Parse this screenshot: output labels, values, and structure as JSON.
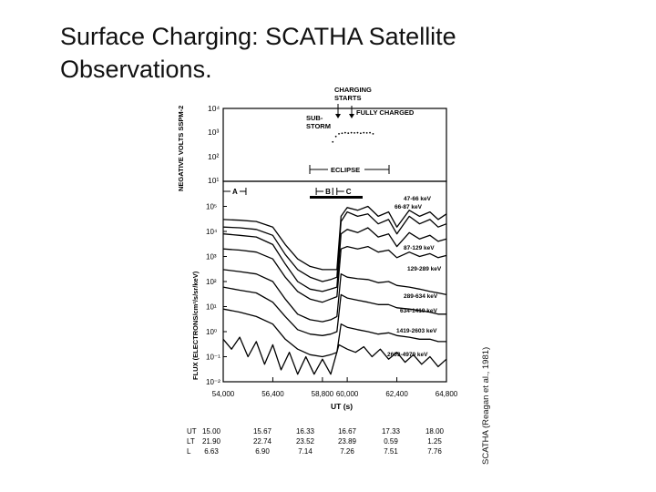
{
  "title": "Surface Charging: SCATHA Satellite Observations.",
  "credit": "SCATHA (Reagan et al., 1981)",
  "chart_data": [
    {
      "type": "line",
      "ylabel": "NEGATIVE VOLTS SSPM-2",
      "y_scale": "log",
      "ylim": [
        10,
        10000
      ],
      "xlim": [
        54000,
        64800
      ],
      "ytick_labels": [
        "10⁴",
        "10³",
        "10²",
        "10¹"
      ],
      "annotations": {
        "charging_starts": "CHARGING STARTS",
        "fully_charged": "FULLY CHARGED",
        "substorm": "SUB-STORM",
        "eclipse": "ECLIPSE"
      },
      "eclipse_range": [
        58000,
        62700
      ],
      "series": [
        {
          "x": [
            59300,
            59450,
            59600,
            59750,
            59900,
            60050,
            60200,
            60350,
            60500,
            60650,
            60800,
            60950,
            61100,
            61250
          ],
          "y": [
            420,
            700,
            900,
            950,
            1000,
            960,
            1000,
            980,
            1000,
            950,
            1000,
            980,
            1000,
            900
          ]
        }
      ]
    },
    {
      "type": "line",
      "ylabel": "FLUX (ELECTRONS/cm²/s/sr/keV)",
      "xlabel": "UT (s)",
      "y_scale": "log",
      "ylim": [
        0.01,
        1000000
      ],
      "xlim": [
        54000,
        64800
      ],
      "x_ticks": [
        54000,
        56400,
        58800,
        60000,
        62400,
        64800
      ],
      "x_tick_labels": [
        "54,000",
        "56,400",
        "58,800",
        "60,000",
        "62,400",
        "64,800"
      ],
      "ytick_labels": [
        "10⁵",
        "10⁴",
        "10³",
        "10²",
        "10¹",
        "10⁰",
        "10⁻¹",
        "10⁻²"
      ],
      "periods": [
        {
          "label": "A",
          "start": 54000,
          "end": 55100
        },
        {
          "label": "B",
          "start": 58500,
          "end": 59300
        },
        {
          "label": "C",
          "start": 59500,
          "end": 64800
        }
      ],
      "series": [
        {
          "name": "47-66 keV",
          "x": [
            54000,
            54800,
            55600,
            56400,
            57000,
            57600,
            58200,
            58800,
            59200,
            59500,
            59700,
            60000,
            60500,
            61000,
            61500,
            62000,
            62400,
            63000,
            63500,
            64000,
            64400,
            64800
          ],
          "y": [
            30000,
            28000,
            25000,
            15000,
            3000,
            800,
            400,
            300,
            300,
            300,
            40000,
            90000,
            70000,
            100000,
            40000,
            60000,
            15000,
            70000,
            40000,
            60000,
            30000,
            50000
          ]
        },
        {
          "name": "66-87 keV",
          "x": [
            54000,
            54800,
            55600,
            56400,
            57000,
            57600,
            58200,
            58800,
            59200,
            59500,
            59700,
            60000,
            60500,
            61000,
            61500,
            62000,
            62400,
            63000,
            63500,
            64000,
            64400,
            64800
          ],
          "y": [
            15000,
            14000,
            12000,
            7000,
            1200,
            300,
            150,
            100,
            120,
            150,
            25000,
            60000,
            40000,
            50000,
            20000,
            30000,
            8000,
            40000,
            20000,
            30000,
            15000,
            20000
          ]
        },
        {
          "name": "87-129 keV",
          "x": [
            54000,
            54800,
            55600,
            56400,
            57000,
            57600,
            58200,
            58800,
            59200,
            59500,
            59700,
            60000,
            60500,
            61000,
            61500,
            62000,
            62400,
            63000,
            63500,
            64000,
            64400,
            64800
          ],
          "y": [
            8000,
            7000,
            6000,
            3000,
            500,
            100,
            50,
            40,
            50,
            60,
            8000,
            12000,
            9000,
            14000,
            6000,
            8000,
            2500,
            9000,
            5000,
            7000,
            4000,
            5000
          ]
        },
        {
          "name": "129-289 keV",
          "x": [
            54000,
            54800,
            55600,
            56400,
            57000,
            57600,
            58200,
            58800,
            59200,
            59500,
            59700,
            60000,
            60500,
            61000,
            61500,
            62000,
            62400,
            63000,
            63500,
            64000,
            64400,
            64800
          ],
          "y": [
            2000,
            1800,
            1500,
            800,
            150,
            40,
            20,
            15,
            20,
            25,
            2000,
            2500,
            2000,
            2500,
            1500,
            1800,
            900,
            1500,
            1000,
            1300,
            900,
            1100
          ]
        },
        {
          "name": "289-634 keV",
          "x": [
            54000,
            54800,
            55600,
            56400,
            57000,
            57600,
            58200,
            58800,
            59200,
            59500,
            59700,
            60000,
            60500,
            61000,
            61500,
            62000,
            62400,
            63000,
            63500,
            64000,
            64400,
            64800
          ],
          "y": [
            300,
            250,
            200,
            100,
            20,
            5,
            3,
            2.5,
            3,
            4,
            200,
            150,
            130,
            120,
            90,
            100,
            70,
            60,
            50,
            40,
            35,
            30
          ]
        },
        {
          "name": "634-1419 keV",
          "x": [
            54000,
            54800,
            55600,
            56400,
            57000,
            57600,
            58200,
            58800,
            59200,
            59500,
            59700,
            60000,
            60500,
            61000,
            61500,
            62000,
            62400,
            63000,
            63500,
            64000,
            64400,
            64800
          ],
          "y": [
            60,
            45,
            35,
            15,
            4,
            1.2,
            0.8,
            0.7,
            0.8,
            1,
            30,
            22,
            18,
            15,
            12,
            12,
            9,
            8,
            7,
            6,
            5,
            5
          ]
        },
        {
          "name": "1419-2603 keV",
          "x": [
            54000,
            54800,
            55600,
            56400,
            57000,
            57600,
            58200,
            58800,
            59200,
            59500,
            59700,
            60000,
            60500,
            61000,
            61500,
            62000,
            62400,
            63000,
            63500,
            64000,
            64400,
            64800
          ],
          "y": [
            8,
            6,
            4,
            2,
            0.5,
            0.2,
            0.12,
            0.1,
            0.12,
            0.15,
            2,
            1.5,
            1.2,
            1,
            0.8,
            0.9,
            0.7,
            0.6,
            0.5,
            0.5,
            0.4,
            0.4
          ]
        },
        {
          "name": "2603-4970 keV",
          "x": [
            54000,
            54400,
            54800,
            55200,
            55600,
            56000,
            56400,
            56800,
            57200,
            57600,
            58000,
            58400,
            58800,
            59200,
            59600,
            60000,
            60400,
            60800,
            61200,
            61600,
            62000,
            62400,
            62800,
            63200,
            63600,
            64000,
            64400,
            64800
          ],
          "y": [
            0.5,
            0.2,
            0.6,
            0.1,
            0.4,
            0.05,
            0.3,
            0.03,
            0.15,
            0.02,
            0.1,
            0.02,
            0.08,
            0.02,
            0.3,
            0.2,
            0.15,
            0.25,
            0.1,
            0.2,
            0.08,
            0.15,
            0.06,
            0.12,
            0.05,
            0.1,
            0.04,
            0.08
          ]
        }
      ]
    }
  ],
  "orbit_table": {
    "rows": [
      {
        "label": "UT",
        "values": [
          "15.00",
          "15.67",
          "16.33",
          "16.67",
          "17.33",
          "18.00"
        ]
      },
      {
        "label": "LT",
        "values": [
          "21.90",
          "22.74",
          "23.52",
          "23.89",
          "0.59",
          "1.25"
        ]
      },
      {
        "label": "L",
        "values": [
          "6.63",
          "6.90",
          "7.14",
          "7.26",
          "7.51",
          "7.76"
        ]
      }
    ]
  }
}
